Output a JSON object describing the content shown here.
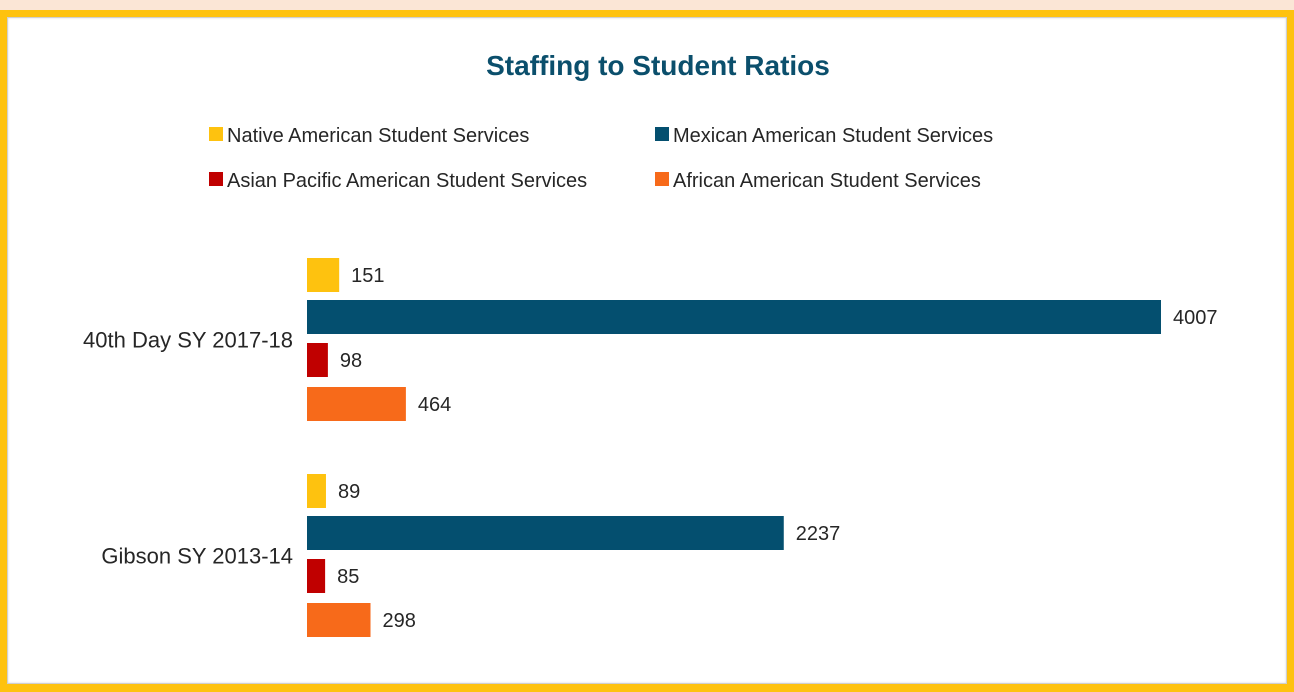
{
  "chart_data": {
    "type": "bar",
    "orientation": "horizontal",
    "title": "Staffing to Student Ratios",
    "title_color": "#0b4f6c",
    "categories": [
      "40th Day SY 2017-18",
      "Gibson SY 2013-14"
    ],
    "series": [
      {
        "name": "Native American Student Services",
        "color": "#fec20f",
        "values": [
          151,
          89
        ]
      },
      {
        "name": "Mexican American Student Services",
        "color": "#044f6f",
        "values": [
          4007,
          2237
        ]
      },
      {
        "name": "Asian Pacific American Student Services",
        "color": "#c00000",
        "values": [
          98,
          85
        ]
      },
      {
        "name": "African American Student Services",
        "color": "#f76a1a",
        "values": [
          464,
          298
        ]
      }
    ],
    "xlim": [
      0,
      4007
    ],
    "grid": false,
    "axis_visible": false,
    "legend_position": "top",
    "data_labels": true
  },
  "colors": {
    "outer_border": "#fec20f",
    "background": "#fbe6d6",
    "panel": "#ffffff"
  }
}
